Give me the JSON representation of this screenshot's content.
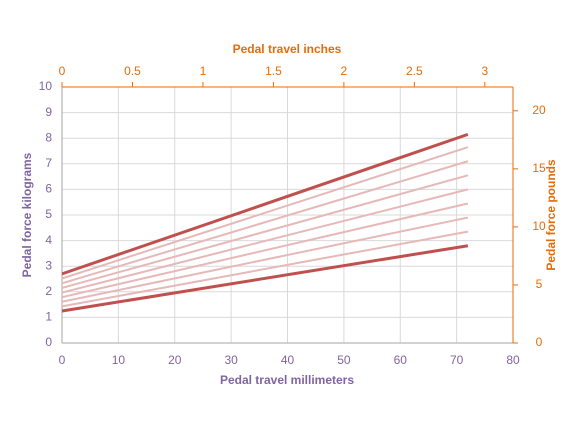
{
  "chart_data": {
    "type": "line",
    "x_title": "Pedal travel millimeters",
    "x2_title": "Pedal travel inches",
    "y_title": "Pedal force kilograms",
    "y2_title": "Pedal force pounds",
    "xlim": [
      0,
      80
    ],
    "xticks": [
      0,
      10,
      20,
      30,
      40,
      50,
      60,
      70,
      80
    ],
    "x2lim": [
      0,
      3.2
    ],
    "x2ticks": [
      0,
      0.5,
      1,
      1.5,
      2,
      2.5,
      3
    ],
    "ylim": [
      0,
      10
    ],
    "yticks": [
      0,
      1,
      2,
      3,
      4,
      5,
      6,
      7,
      8,
      9,
      10
    ],
    "y2lim": [
      0,
      22.05
    ],
    "y2ticks": [
      0,
      5,
      10,
      15,
      20
    ],
    "grid": true,
    "primary_axis_color": "#8064a2",
    "secondary_axis_color": "#e46c0a",
    "series": [
      {
        "color": "#c0504d",
        "width": 3,
        "x": [
          0,
          72
        ],
        "values": [
          1.25,
          3.8
        ]
      },
      {
        "color": "#e6b8b7",
        "width": 2,
        "x": [
          0,
          72
        ],
        "values": [
          1.43,
          4.35
        ]
      },
      {
        "color": "#e6b8b7",
        "width": 2,
        "x": [
          0,
          72
        ],
        "values": [
          1.61,
          4.9
        ]
      },
      {
        "color": "#e6b8b7",
        "width": 2,
        "x": [
          0,
          72
        ],
        "values": [
          1.79,
          5.45
        ]
      },
      {
        "color": "#e6b8b7",
        "width": 2,
        "x": [
          0,
          72
        ],
        "values": [
          1.97,
          6.0
        ]
      },
      {
        "color": "#e6b8b7",
        "width": 2,
        "x": [
          0,
          72
        ],
        "values": [
          2.15,
          6.55
        ]
      },
      {
        "color": "#e6b8b7",
        "width": 2,
        "x": [
          0,
          72
        ],
        "values": [
          2.33,
          7.1
        ]
      },
      {
        "color": "#e6b8b7",
        "width": 2,
        "x": [
          0,
          72
        ],
        "values": [
          2.52,
          7.65
        ]
      },
      {
        "color": "#c0504d",
        "width": 3,
        "x": [
          0,
          72
        ],
        "values": [
          2.7,
          8.15
        ]
      }
    ]
  }
}
